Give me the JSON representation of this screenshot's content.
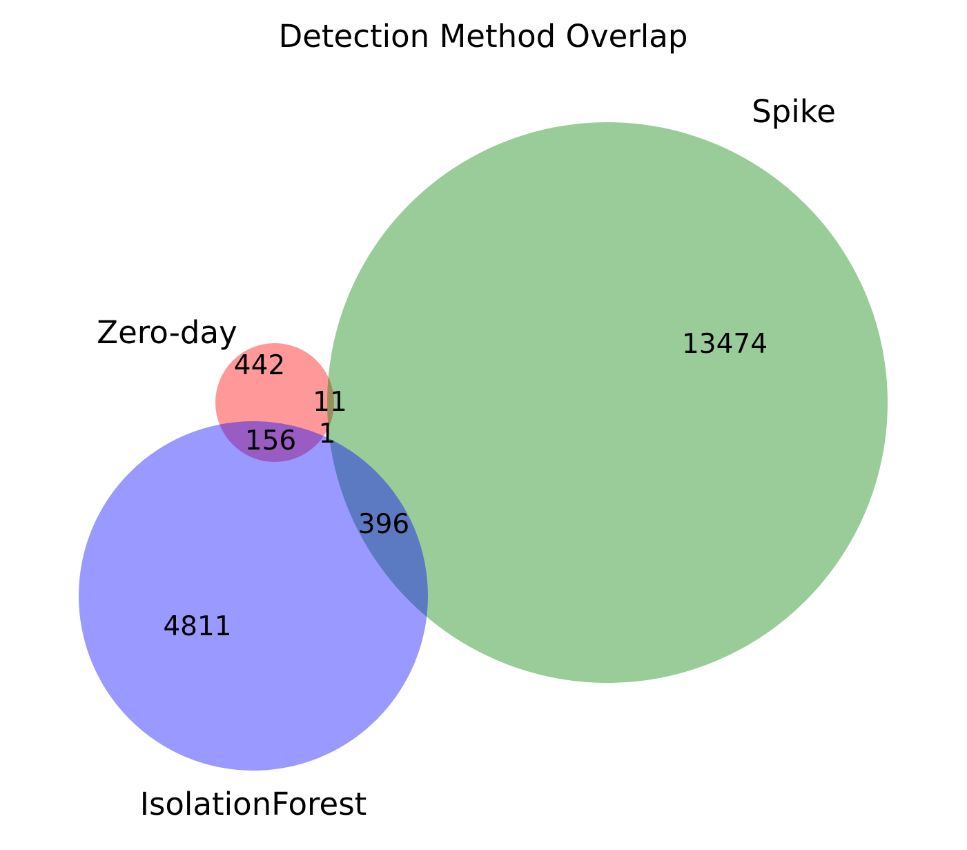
{
  "chart_data": {
    "type": "venn",
    "title": "Detection Method Overlap",
    "sets": [
      {
        "name": "Zero-day",
        "color": "#ff0000"
      },
      {
        "name": "Spike",
        "color": "#008000"
      },
      {
        "name": "IsolationForest",
        "color": "#0000ff"
      }
    ],
    "regions": [
      {
        "sets": [
          "Zero-day"
        ],
        "value": 442
      },
      {
        "sets": [
          "Spike"
        ],
        "value": 13474
      },
      {
        "sets": [
          "IsolationForest"
        ],
        "value": 4811
      },
      {
        "sets": [
          "Zero-day",
          "Spike"
        ],
        "value": 11
      },
      {
        "sets": [
          "Zero-day",
          "IsolationForest"
        ],
        "value": 156
      },
      {
        "sets": [
          "Spike",
          "IsolationForest"
        ],
        "value": 396
      },
      {
        "sets": [
          "Zero-day",
          "Spike",
          "IsolationForest"
        ],
        "value": 1
      }
    ],
    "opacity": 0.4
  }
}
